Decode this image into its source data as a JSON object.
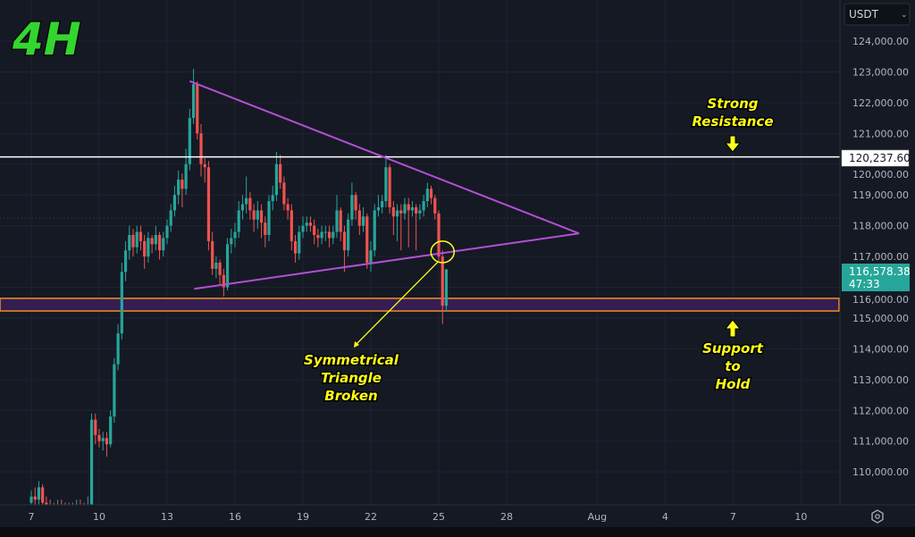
{
  "timeframe_label": "4H",
  "currency_selector": {
    "value": "USDT"
  },
  "colors": {
    "background": "#151924",
    "up": "#26a69a",
    "down": "#ef5350",
    "triangle": "#b44fd6",
    "resistance_line": "#ffffff",
    "support_zone_border": "#f0901e",
    "support_zone_fill": "#3b1f5c",
    "annotation": "#ffff1a",
    "price_tag": "#26a69a"
  },
  "chart_data": {
    "type": "candlestick",
    "title": "",
    "ylim": [
      108800,
      124600
    ],
    "y_ticks": [
      "124,000.00",
      "123,000.00",
      "122,000.00",
      "121,000.00",
      "120,000.00",
      "119,000.00",
      "118,000.00",
      "117,000.00",
      "116,000.00",
      "115,000.00",
      "114,000.00",
      "113,000.00",
      "112,000.00",
      "111,000.00",
      "110,000.00"
    ],
    "y_tick_values": [
      124000,
      123000,
      122000,
      121000,
      120000,
      119000,
      118000,
      117000,
      116000,
      115000,
      114000,
      113000,
      112000,
      111000,
      110000
    ],
    "x_ticks": [
      "7",
      "10",
      "13",
      "16",
      "19",
      "22",
      "25",
      "28",
      "Aug",
      "4",
      "7",
      "10"
    ],
    "x_tick_days": [
      7,
      10,
      13,
      16,
      19,
      22,
      25,
      28,
      32,
      35,
      38,
      41
    ],
    "first_candle_day": 7,
    "candles_per_day": 6,
    "candles": [
      [
        109000,
        109400,
        108800,
        109200
      ],
      [
        109200,
        109500,
        108900,
        109100
      ],
      [
        109100,
        109700,
        108900,
        109500
      ],
      [
        109500,
        109600,
        108800,
        109000
      ],
      [
        109000,
        109200,
        108600,
        108900
      ],
      [
        108900,
        109100,
        108600,
        108800
      ],
      [
        108800,
        109000,
        108500,
        108700
      ],
      [
        108700,
        109100,
        108500,
        108900
      ],
      [
        108900,
        109100,
        108600,
        108800
      ],
      [
        108800,
        109000,
        108500,
        108700
      ],
      [
        108700,
        109000,
        108500,
        108800
      ],
      [
        108800,
        109000,
        108500,
        108700
      ],
      [
        108700,
        109100,
        108500,
        108900
      ],
      [
        108900,
        109100,
        108600,
        108800
      ],
      [
        108800,
        109000,
        108500,
        108700
      ],
      [
        108700,
        109200,
        108500,
        108900
      ],
      [
        108900,
        111900,
        108800,
        111700
      ],
      [
        111700,
        111900,
        110900,
        111200
      ],
      [
        111200,
        111400,
        110800,
        111000
      ],
      [
        111000,
        111300,
        110700,
        111100
      ],
      [
        111100,
        111300,
        110500,
        110900
      ],
      [
        110900,
        112000,
        110800,
        111800
      ],
      [
        111800,
        113700,
        111600,
        113500
      ],
      [
        113500,
        114800,
        113300,
        114500
      ],
      [
        114500,
        116800,
        114300,
        116500
      ],
      [
        116500,
        117500,
        116200,
        117200
      ],
      [
        117200,
        118000,
        116900,
        117700
      ],
      [
        117700,
        117900,
        117000,
        117300
      ],
      [
        117300,
        118000,
        117100,
        117800
      ],
      [
        117800,
        118000,
        117200,
        117500
      ],
      [
        117500,
        117700,
        116600,
        117000
      ],
      [
        117000,
        117800,
        116800,
        117600
      ],
      [
        117600,
        117700,
        117100,
        117400
      ],
      [
        117400,
        118000,
        117200,
        117700
      ],
      [
        117700,
        117800,
        116900,
        117200
      ],
      [
        117200,
        117800,
        117000,
        117600
      ],
      [
        117600,
        118200,
        117400,
        118000
      ],
      [
        118000,
        118700,
        117800,
        118500
      ],
      [
        118500,
        119300,
        118300,
        119000
      ],
      [
        119000,
        119800,
        118700,
        119500
      ],
      [
        119500,
        119700,
        118600,
        119200
      ],
      [
        119200,
        120500,
        119000,
        120000
      ],
      [
        120000,
        121800,
        119800,
        121500
      ],
      [
        121500,
        123100,
        121300,
        122600
      ],
      [
        122600,
        122700,
        120800,
        121000
      ],
      [
        121000,
        121300,
        119600,
        120000
      ],
      [
        120000,
        120200,
        119400,
        119900
      ],
      [
        119900,
        120100,
        117200,
        117500
      ],
      [
        117500,
        117800,
        116400,
        116600
      ],
      [
        116600,
        117000,
        116300,
        116800
      ],
      [
        116800,
        116900,
        116100,
        116400
      ],
      [
        116400,
        116600,
        115700,
        116000
      ],
      [
        116000,
        117600,
        115900,
        117400
      ],
      [
        117400,
        117900,
        117100,
        117600
      ],
      [
        117600,
        118100,
        117300,
        117800
      ],
      [
        117800,
        118800,
        117600,
        118500
      ],
      [
        118500,
        119000,
        118200,
        118700
      ],
      [
        118700,
        119600,
        118400,
        118900
      ],
      [
        118900,
        119100,
        118200,
        118500
      ],
      [
        118500,
        118700,
        117800,
        118200
      ],
      [
        118200,
        118800,
        117900,
        118500
      ],
      [
        118500,
        118700,
        117600,
        118100
      ],
      [
        118100,
        118300,
        117300,
        117700
      ],
      [
        117700,
        119000,
        117500,
        118800
      ],
      [
        118800,
        119300,
        118500,
        119000
      ],
      [
        119000,
        120400,
        118800,
        120000
      ],
      [
        120000,
        120300,
        119200,
        119400
      ],
      [
        119400,
        119600,
        118500,
        118700
      ],
      [
        118700,
        118900,
        118200,
        118500
      ],
      [
        118500,
        118700,
        117200,
        117500
      ],
      [
        117500,
        117700,
        116800,
        117100
      ],
      [
        117100,
        118000,
        116900,
        117800
      ],
      [
        117800,
        118300,
        117600,
        118000
      ],
      [
        118000,
        118300,
        117800,
        118100
      ],
      [
        118100,
        118300,
        117800,
        118000
      ],
      [
        118000,
        118200,
        117400,
        117700
      ],
      [
        117700,
        117900,
        117300,
        117600
      ],
      [
        117600,
        118000,
        117400,
        117800
      ],
      [
        117800,
        118000,
        117500,
        117800
      ],
      [
        117800,
        118000,
        117300,
        117600
      ],
      [
        117600,
        118000,
        117400,
        117800
      ],
      [
        117800,
        119000,
        117600,
        118500
      ],
      [
        118500,
        118600,
        117500,
        117800
      ],
      [
        117800,
        118000,
        116500,
        117200
      ],
      [
        117200,
        118400,
        117000,
        118200
      ],
      [
        118200,
        119400,
        118000,
        119000
      ],
      [
        119000,
        119100,
        118200,
        118500
      ],
      [
        118500,
        118700,
        117700,
        118000
      ],
      [
        118000,
        118600,
        117800,
        118300
      ],
      [
        118300,
        118400,
        116600,
        116800
      ],
      [
        116800,
        117500,
        116500,
        117200
      ],
      [
        117200,
        118700,
        117000,
        118500
      ],
      [
        118500,
        119000,
        118300,
        118600
      ],
      [
        118600,
        119000,
        118400,
        118800
      ],
      [
        118800,
        120300,
        118600,
        119900
      ],
      [
        119900,
        120000,
        118400,
        118600
      ],
      [
        118600,
        118800,
        117700,
        118300
      ],
      [
        118300,
        118700,
        117500,
        118500
      ],
      [
        118500,
        118700,
        117200,
        118400
      ],
      [
        118400,
        118900,
        118200,
        118700
      ],
      [
        118700,
        118900,
        117300,
        118500
      ],
      [
        118500,
        118800,
        118300,
        118600
      ],
      [
        118600,
        118700,
        117200,
        118400
      ],
      [
        118400,
        118700,
        118200,
        118500
      ],
      [
        118500,
        119000,
        118300,
        118800
      ],
      [
        118800,
        119400,
        118600,
        119200
      ],
      [
        119200,
        119300,
        118700,
        118900
      ],
      [
        118900,
        119000,
        118200,
        118400
      ],
      [
        118400,
        118500,
        116800,
        117000
      ],
      [
        117000,
        117200,
        114800,
        115400
      ],
      [
        115400,
        116600,
        115200,
        116578
      ]
    ],
    "resistance": {
      "price": 120237.6,
      "label": "120,237.60"
    },
    "support_zone": {
      "from": 115230,
      "to": 115640
    },
    "dotted_price_line": 118250,
    "triangle": {
      "upper": [
        {
          "day": 14.0,
          "price": 122700
        },
        {
          "day": 31.2,
          "price": 117750
        }
      ],
      "lower": [
        {
          "day": 14.2,
          "price": 115950
        },
        {
          "day": 31.2,
          "price": 117750
        }
      ]
    },
    "break_point": {
      "day": 25.05,
      "price": 117150
    },
    "current_price": {
      "value": "116,578.38",
      "countdown": "47:33"
    },
    "annotations": {
      "resistance": [
        "Strong",
        "Resistance"
      ],
      "support": [
        "Support",
        "to",
        "Hold"
      ],
      "breakout": [
        "Symmetrical",
        "Triangle",
        "Broken"
      ]
    }
  }
}
